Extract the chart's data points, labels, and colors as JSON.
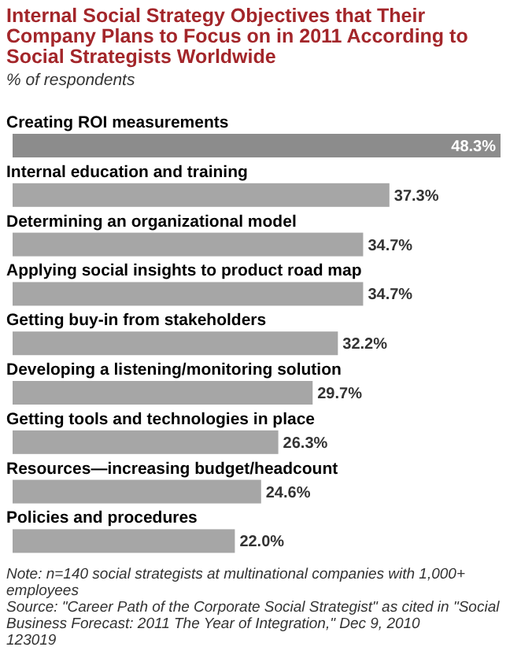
{
  "chart_data": {
    "type": "bar",
    "orientation": "horizontal",
    "title": "Internal Social Strategy Objectives that Their Company Plans to Focus on in 2011 According to Social Strategists Worldwide",
    "subtitle": "% of respondents",
    "categories": [
      "Creating ROI measurements",
      "Internal education and training",
      "Determining an organizational model",
      "Applying social insights to product road map",
      "Getting buy-in from stakeholders",
      "Developing a listening/monitoring solution",
      "Getting tools and technologies in place",
      "Resources—increasing budget/headcount",
      "Policies and procedures"
    ],
    "values": [
      48.3,
      37.3,
      34.7,
      34.7,
      32.2,
      29.7,
      26.3,
      24.6,
      22.0
    ],
    "value_labels": [
      "48.3%",
      "37.3%",
      "34.7%",
      "34.7%",
      "32.2%",
      "29.7%",
      "26.3%",
      "24.6%",
      "22.0%"
    ],
    "colors": [
      "#8c8c8c",
      "#a6a6a6",
      "#a6a6a6",
      "#a6a6a6",
      "#a6a6a6",
      "#a6a6a6",
      "#a6a6a6",
      "#a6a6a6",
      "#a6a6a6"
    ],
    "annotations": [
      "Note: n=140 social strategists at multinational companies with 1,000+ employees",
      "Source: \"Career Path of the Corporate Social Strategist\" as cited in \"Social Business Forecast: 2011 The Year of Integration,\" Dec 9, 2010",
      "123019"
    ]
  }
}
